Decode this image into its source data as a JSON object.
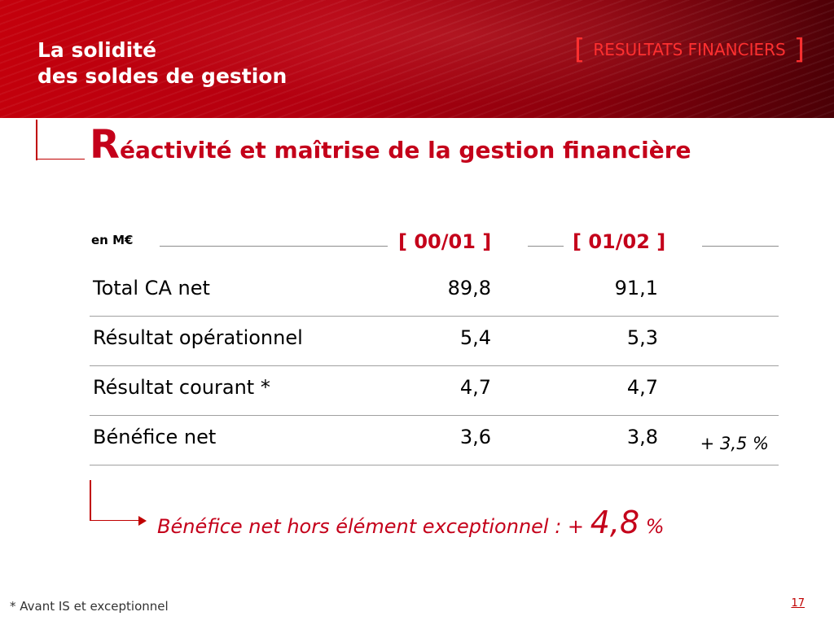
{
  "header": {
    "title_line1": "La solidité",
    "title_line2": "des soldes de gestion",
    "section_open": "[",
    "section_label": "RESULTATS FINANCIERS",
    "section_close": "]"
  },
  "slide": {
    "title_initial": "R",
    "title_rest": "éactivité et maîtrise de la gestion financière"
  },
  "table": {
    "unit": "en M€",
    "columns": [
      "[ 00/01 ]",
      "[ 01/02 ]"
    ],
    "rows": [
      {
        "label": "Total CA net",
        "v1": "89,8",
        "v2": "91,1",
        "note": ""
      },
      {
        "label": "Résultat opérationnel",
        "v1": "5,4",
        "v2": "5,3",
        "note": ""
      },
      {
        "label": "Résultat courant *",
        "v1": "4,7",
        "v2": "4,7",
        "note": ""
      },
      {
        "label": "Bénéfice net",
        "v1": "3,6",
        "v2": "3,8",
        "note_sign": "+",
        "note": "3,5 %"
      }
    ]
  },
  "highlight": {
    "text": "Bénéfice net hors élément exceptionnel : +",
    "value": "4,8",
    "unit": "%"
  },
  "footnote": "*  Avant IS et exceptionnel",
  "page_number": "17",
  "colors": {
    "brand_red": "#c4001a",
    "banner_dark": "#4a0006"
  }
}
